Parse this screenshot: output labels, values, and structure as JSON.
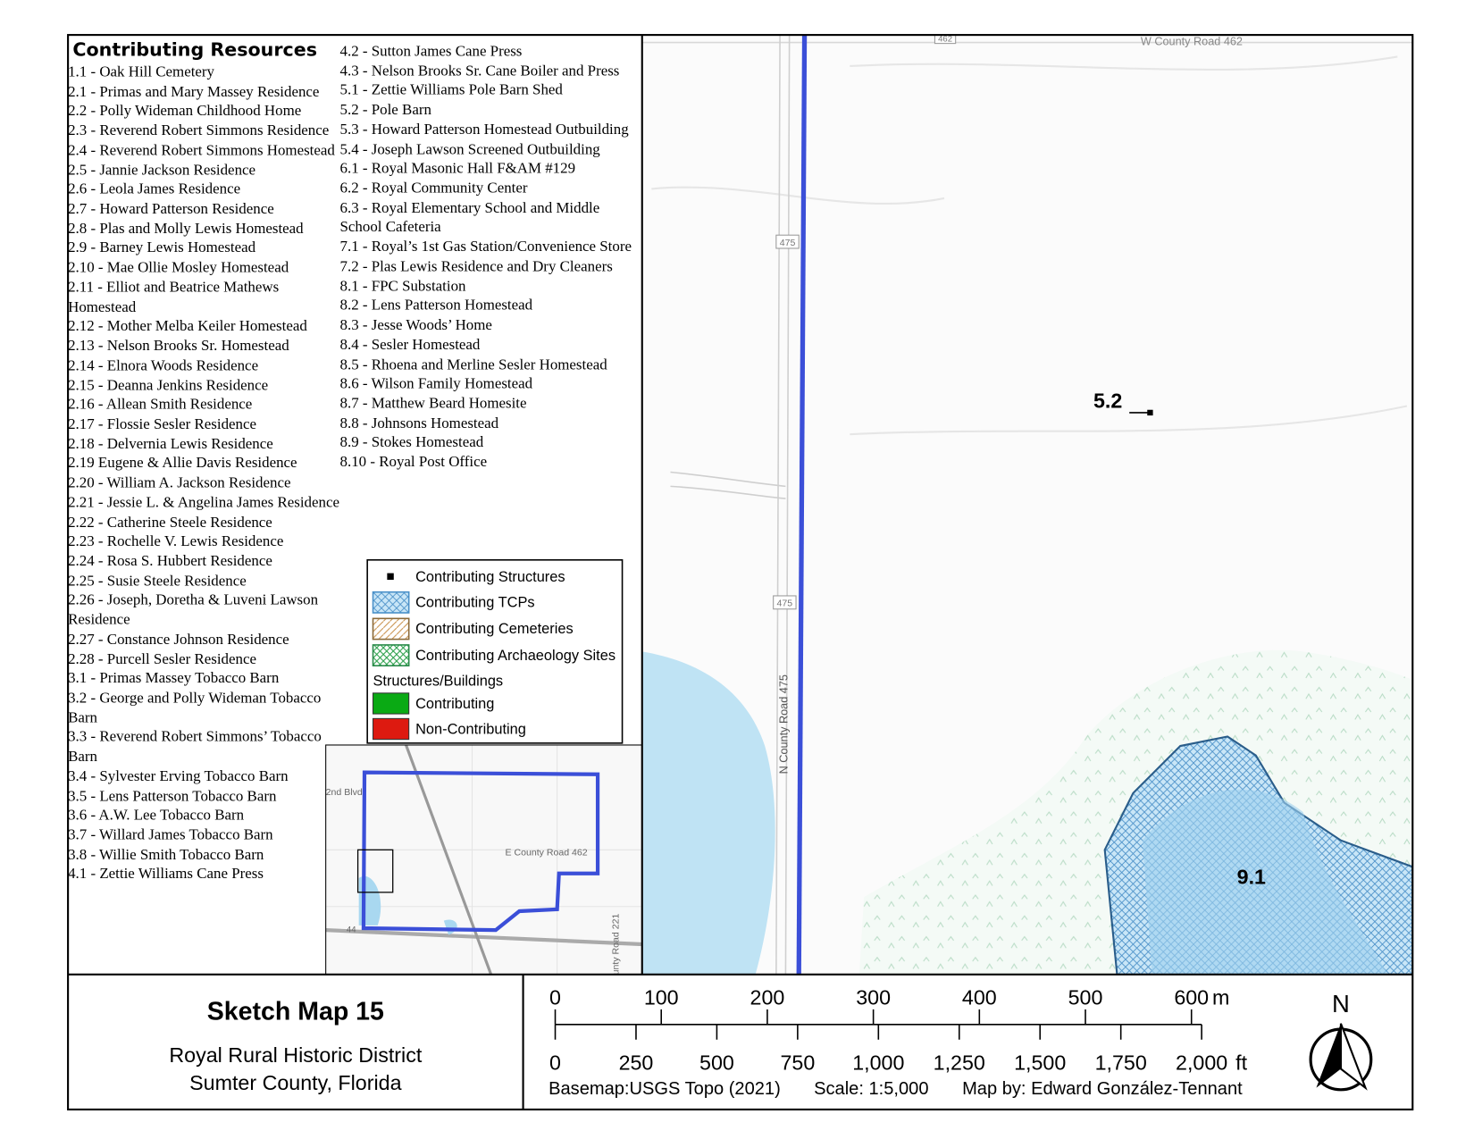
{
  "resources": {
    "heading": "Contributing Resources",
    "column_1": [
      "1.1 - Oak Hill Cemetery",
      "2.1 - Primas and Mary Massey Residence",
      "2.2 - Polly Wideman Childhood Home",
      "2.3 - Reverend Robert Simmons Residence",
      "2.4 - Reverend Robert Simmons Homestead",
      "2.5 - Jannie Jackson Residence",
      "2.6 - Leola James Residence",
      "2.7 - Howard Patterson Residence",
      "2.8 - Plas and Molly Lewis Homestead",
      "2.9 - Barney Lewis Homestead",
      "2.10 - Mae Ollie Mosley Homestead",
      "2.11 - Elliot and Beatrice Mathews Homestead",
      "2.12 - Mother Melba Keiler Homestead",
      "2.13 - Nelson Brooks Sr. Homestead",
      "2.14 - Elnora Woods Residence",
      "2.15 - Deanna Jenkins Residence",
      "2.16 - Allean Smith Residence",
      "2.17 - Flossie Sesler Residence",
      "2.18 - Delvernia Lewis Residence",
      "2.19 Eugene & Allie Davis Residence",
      "2.20 - William A. Jackson Residence",
      "2.21 - Jessie L. & Angelina James Residence",
      "2.22 - Catherine Steele Residence",
      "2.23 -  Rochelle V. Lewis Residence",
      "2.24 - Rosa S. Hubbert Residence",
      "2.25 - Susie Steele Residence",
      "2.26 - Joseph, Doretha & Luveni Lawson Residence",
      "2.27 - Constance Johnson Residence",
      "2.28 - Purcell Sesler Residence",
      "3.1 - Primas Massey Tobacco Barn",
      "3.2 - George and Polly Wideman Tobacco Barn",
      "3.3 - Reverend Robert Simmons’ Tobacco Barn",
      "3.4 - Sylvester Erving Tobacco Barn",
      "3.5 - Lens Patterson Tobacco Barn",
      "3.6 - A.W. Lee Tobacco Barn",
      "3.7 - Willard James Tobacco Barn",
      "3.8 - Willie Smith Tobacco Barn",
      "4.1 - Zettie Williams Cane Press"
    ],
    "column_2": [
      "4.2 - Sutton James Cane Press",
      "4.3 - Nelson Brooks Sr. Cane Boiler and Press",
      "5.1 - Zettie Williams Pole Barn Shed",
      "5.2 - Pole Barn",
      "5.3 - Howard Patterson Homestead Outbuilding",
      "5.4 - Joseph Lawson Screened Outbuilding",
      "6.1 - Royal Masonic Hall F&AM #129",
      "6.2 - Royal Community Center",
      "6.3 - Royal Elementary School and Middle School Cafeteria",
      "7.1 - Royal’s 1st Gas Station/Convenience Store",
      "7.2 - Plas Lewis Residence and Dry Cleaners",
      "8.1 - FPC Substation",
      "8.2 - Lens Patterson Homestead",
      "8.3 - Jesse Woods’ Home",
      "8.4 - Sesler Homestead",
      "8.5 - Rhoena and Merline Sesler Homestead",
      "8.6 - Wilson Family Homestead",
      "8.7 - Matthew Beard Homesite",
      "8.8 - Johnsons Homestead",
      "8.9 - Stokes Homestead",
      "8.10 - Royal Post Office"
    ]
  },
  "legend": {
    "items": [
      "Contributing Structures",
      "Contributing TCPs",
      "Contributing Cemeteries",
      "Contributing Archaeology Sites"
    ],
    "group_title": "Structures/Buildings",
    "group_items": [
      "Contributing",
      "Non-Contributing"
    ]
  },
  "map": {
    "road_label": "W County Road 462",
    "shield_top": "462",
    "shield_1": "475",
    "shield_2": "475",
    "vertical_road": "N County Road 475",
    "site_a": "5.2",
    "site_b": "9.1"
  },
  "inset": {
    "label_1": "2nd Blvd",
    "label_2": "E County Road 462",
    "label_3": "44",
    "label_4": "unty Road 221"
  },
  "title_block": {
    "title": "Sketch Map 15",
    "line_1": "Royal Rural Historic District",
    "line_2": "Sumter County, Florida"
  },
  "scale_bar": {
    "meters": [
      0,
      100,
      200,
      300,
      400,
      500,
      600
    ],
    "meters_unit": "m",
    "feet": [
      0,
      250,
      500,
      750,
      {
        "value": 1000,
        "label": "1,000"
      },
      {
        "value": 1250,
        "label": "1,250"
      },
      {
        "value": 1500,
        "label": "1,500"
      },
      {
        "value": 1750,
        "label": "1,750"
      },
      {
        "value": 2000,
        "label": "2,000"
      }
    ],
    "feet_unit": "ft"
  },
  "credits": [
    "Basemap:USGS Topo (2021)",
    "Scale: 1:5,000",
    "Map by: Edward González-Tennant"
  ],
  "north": "N"
}
